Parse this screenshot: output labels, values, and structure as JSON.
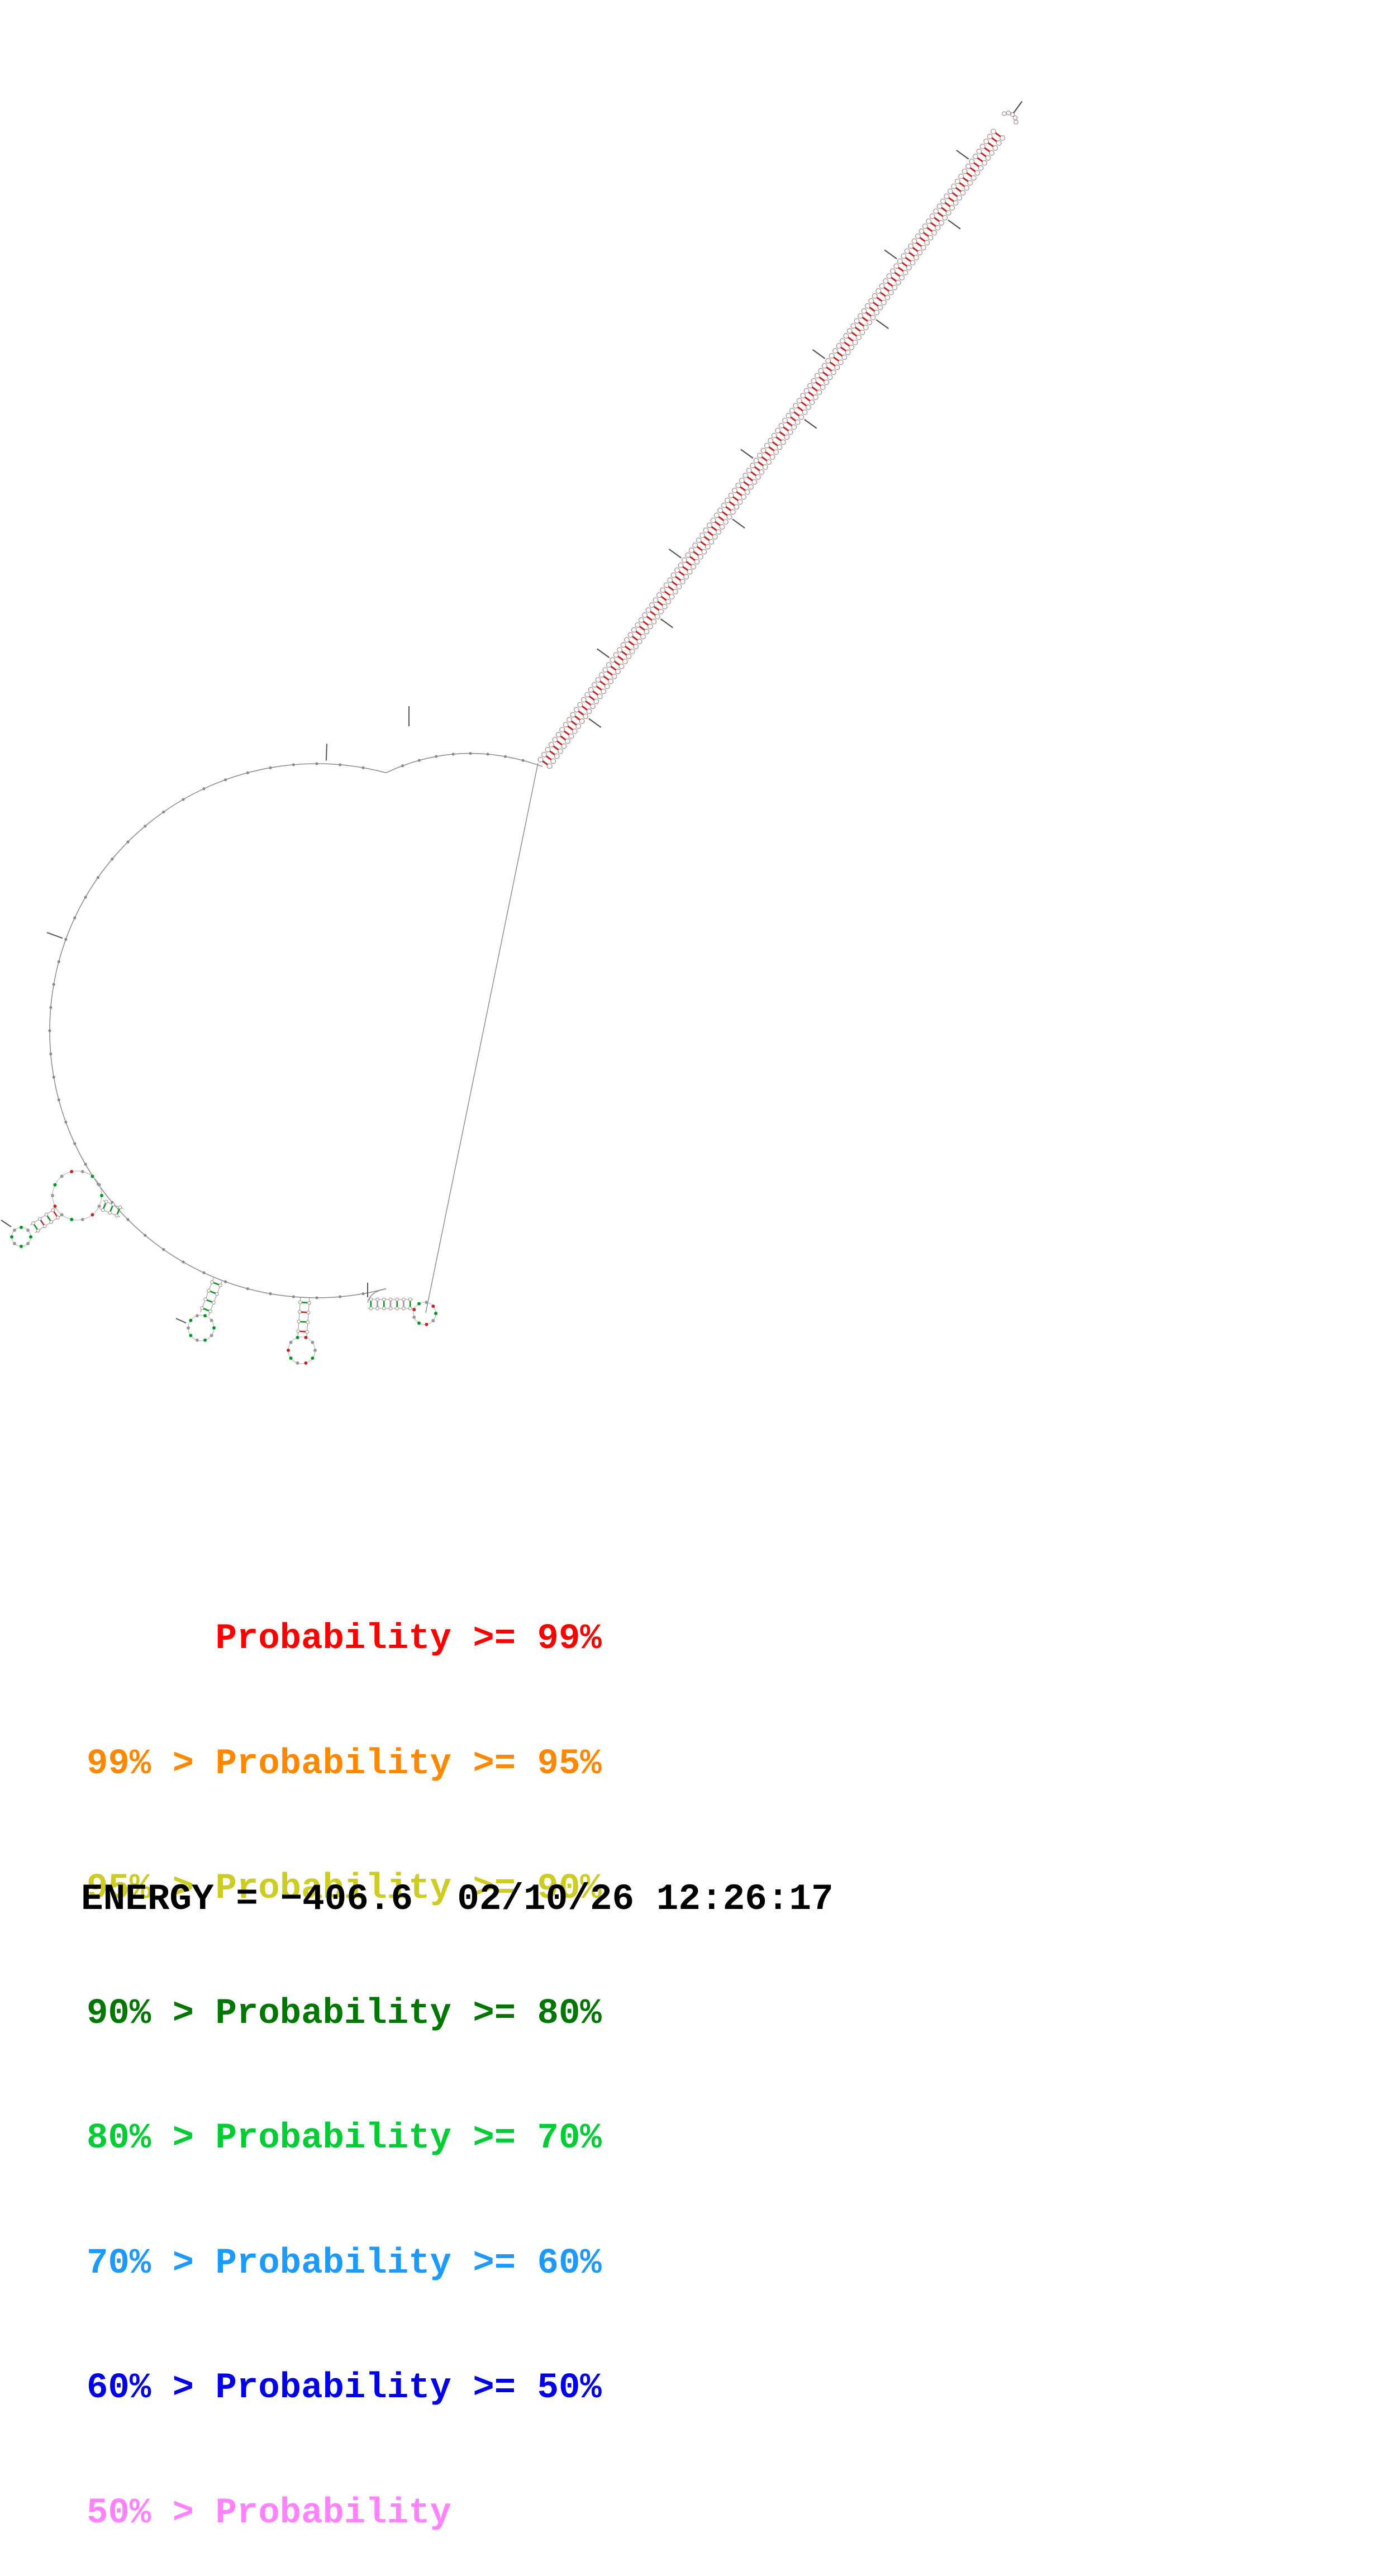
{
  "legend": {
    "items": [
      {
        "label": "Probability >= 99%",
        "color": "#FF0000"
      },
      {
        "label": "99% > Probability >= 95%",
        "color": "#FF8800"
      },
      {
        "label": "95% > Probability >= 90%",
        "color": "#CCCC22"
      },
      {
        "label": "90% > Probability >= 80%",
        "color": "#007700"
      },
      {
        "label": "80% > Probability >= 70%",
        "color": "#00CC33"
      },
      {
        "label": "70% > Probability >= 60%",
        "color": "#1E9AFF"
      },
      {
        "label": "60% > Probability >= 50%",
        "color": "#0000EE"
      },
      {
        "label": "50% > Probability",
        "color": "#FF82FF"
      }
    ]
  },
  "footer": {
    "energy_text": "ENERGY = −406.6  02/10/26 12:26:17"
  },
  "diagram": {
    "colors": {
      "pair_red": "#CC2222",
      "pair_green": "#009922",
      "backbone": "#8F8F8F",
      "nucleotide_outline": "#AA8888",
      "tick": "#555555",
      "dot": "#8A8A8A"
    }
  }
}
